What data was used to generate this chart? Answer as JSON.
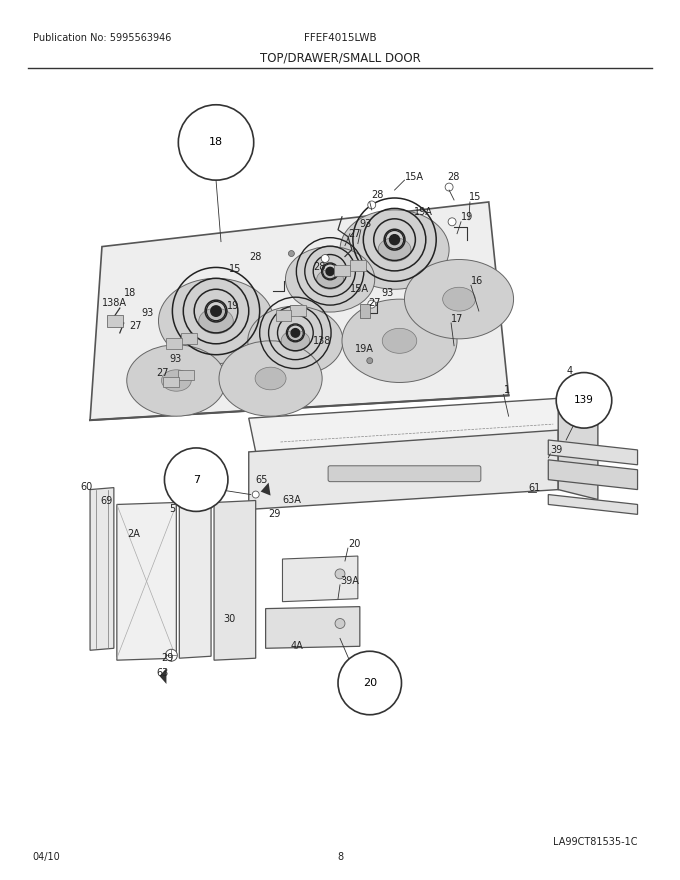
{
  "pub_no": "Publication No: 5995563946",
  "model": "FFEF4015LWB",
  "section": "TOP/DRAWER/SMALL DOOR",
  "footer_left": "04/10",
  "footer_center": "8",
  "footer_right": "LA99CT81535-1C",
  "bg_color": "#ffffff",
  "figsize": [
    6.8,
    8.8
  ],
  "dpi": 100
}
